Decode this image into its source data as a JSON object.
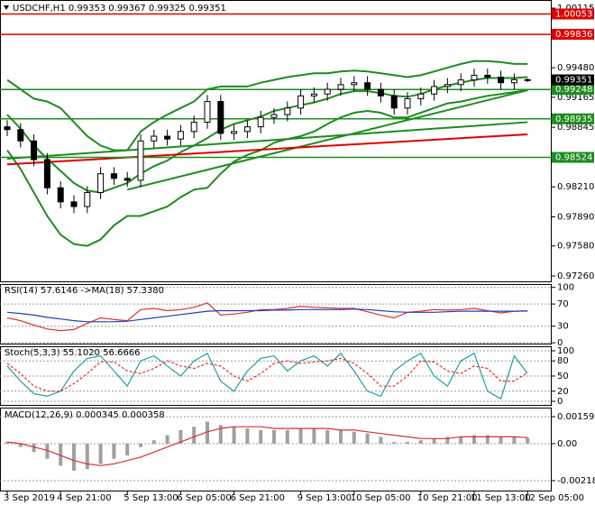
{
  "chart_data": [
    {
      "type": "candlestick",
      "title": "USDCHF,H1  0.99353 0.99367 0.99325 0.99351",
      "categories": [
        "3 Sep 2019",
        null,
        null,
        null,
        "4 Sep 21:00",
        null,
        null,
        null,
        null,
        "5 Sep 13:00",
        null,
        null,
        null,
        "6 Sep 05:00",
        null,
        null,
        null,
        "6 Sep 21:00",
        null,
        null,
        null,
        null,
        "9 Sep 13:00",
        null,
        null,
        null,
        "10 Sep 05:00",
        null,
        null,
        null,
        null,
        "10 Sep 21:00",
        null,
        null,
        null,
        "11 Sep 13:00",
        null,
        null,
        null,
        "12 Sep 05:00"
      ],
      "open": [
        0.9885,
        0.9882,
        0.987,
        0.985,
        0.982,
        0.9805,
        0.98,
        0.9815,
        0.9835,
        0.983,
        0.9828,
        0.987,
        0.9875,
        0.9872,
        0.988,
        0.989,
        0.9912,
        0.9878,
        0.988,
        0.9885,
        0.9895,
        0.9898,
        0.9905,
        0.9918,
        0.992,
        0.9925,
        0.993,
        0.9932,
        0.9925,
        0.9918,
        0.9905,
        0.9915,
        0.992,
        0.9928,
        0.993,
        0.9935,
        0.994,
        0.9938,
        0.9932,
        0.99353
      ],
      "high": [
        0.9892,
        0.9889,
        0.9877,
        0.9857,
        0.9827,
        0.9812,
        0.9822,
        0.9842,
        0.9842,
        0.9837,
        0.9877,
        0.9882,
        0.9882,
        0.9887,
        0.9897,
        0.9919,
        0.9919,
        0.9887,
        0.9892,
        0.9902,
        0.9905,
        0.9912,
        0.9925,
        0.9927,
        0.9932,
        0.9937,
        0.9939,
        0.9939,
        0.9932,
        0.9925,
        0.9922,
        0.9927,
        0.9935,
        0.9937,
        0.9942,
        0.9947,
        0.9947,
        0.9945,
        0.9942,
        0.99367
      ],
      "low": [
        0.9875,
        0.9863,
        0.9843,
        0.9813,
        0.9798,
        0.9793,
        0.9793,
        0.9808,
        0.9823,
        0.9821,
        0.9821,
        0.9863,
        0.9865,
        0.9865,
        0.9873,
        0.9883,
        0.9871,
        0.9871,
        0.9873,
        0.9878,
        0.9888,
        0.9891,
        0.9898,
        0.9911,
        0.9913,
        0.9918,
        0.9923,
        0.9918,
        0.9911,
        0.9898,
        0.9898,
        0.9908,
        0.9913,
        0.9921,
        0.9923,
        0.9928,
        0.9931,
        0.9925,
        0.9925,
        0.99325
      ],
      "close": [
        0.9882,
        0.987,
        0.985,
        0.982,
        0.9805,
        0.98,
        0.9815,
        0.9835,
        0.983,
        0.9828,
        0.987,
        0.9875,
        0.9872,
        0.988,
        0.989,
        0.9912,
        0.9878,
        0.988,
        0.9885,
        0.9895,
        0.9898,
        0.9905,
        0.9918,
        0.992,
        0.9925,
        0.993,
        0.9932,
        0.9925,
        0.9918,
        0.9905,
        0.9915,
        0.992,
        0.9928,
        0.993,
        0.9935,
        0.994,
        0.9938,
        0.9932,
        0.99353,
        0.99351
      ],
      "up_color": "#ffffff",
      "down_color": "#000000",
      "last_price_color": "#000000",
      "series": [
        {
          "color": "#1e8c1e",
          "values": [
            0.9935,
            0.9925,
            0.9915,
            0.9912,
            0.9905,
            0.989,
            0.9875,
            0.9865,
            0.986,
            0.986,
            0.988,
            0.989,
            0.9898,
            0.9905,
            0.9912,
            0.9925,
            0.9928,
            0.9928,
            0.9928,
            0.9932,
            0.9935,
            0.9938,
            0.994,
            0.9942,
            0.9942,
            0.9944,
            0.9945,
            0.9944,
            0.9942,
            0.994,
            0.9938,
            0.994,
            0.9944,
            0.9948,
            0.9952,
            0.9955,
            0.9955,
            0.9954,
            0.9952,
            0.9952
          ]
        },
        {
          "color": "#1e8c1e",
          "values": [
            0.9898,
            0.9883,
            0.9865,
            0.9851,
            0.9838,
            0.9825,
            0.9817,
            0.9815,
            0.982,
            0.9825,
            0.9835,
            0.9843,
            0.9849,
            0.9858,
            0.9865,
            0.9873,
            0.9882,
            0.9888,
            0.9892,
            0.9896,
            0.9902,
            0.9905,
            0.9908,
            0.9911,
            0.9915,
            0.992,
            0.9923,
            0.9923,
            0.9921,
            0.9918,
            0.9917,
            0.992,
            0.9925,
            0.9929,
            0.9932,
            0.9935,
            0.9937,
            0.9937,
            0.9937,
            0.9938
          ]
        },
        {
          "color": "#1e8c1e",
          "values": [
            0.986,
            0.984,
            0.9815,
            0.979,
            0.977,
            0.976,
            0.9758,
            0.9765,
            0.978,
            0.979,
            0.979,
            0.9795,
            0.98,
            0.981,
            0.9818,
            0.982,
            0.9835,
            0.9848,
            0.9855,
            0.986,
            0.9868,
            0.9872,
            0.9875,
            0.988,
            0.9888,
            0.9895,
            0.99,
            0.9902,
            0.99,
            0.9895,
            0.9895,
            0.99,
            0.9905,
            0.991,
            0.9912,
            0.9915,
            0.9918,
            0.992,
            0.9922,
            0.9924
          ]
        }
      ],
      "trendlines": [
        {
          "color": "#1e8c1e",
          "x": [
            9,
            39
          ],
          "y": [
            0.9818,
            0.9924
          ]
        },
        {
          "color": "#1e8c1e",
          "x": [
            0,
            39
          ],
          "y": [
            0.9851,
            0.989
          ]
        },
        {
          "color": "#e00000",
          "x": [
            0,
            39
          ],
          "y": [
            0.9845,
            0.9877
          ]
        }
      ],
      "levels": [
        {
          "value": 1.00053,
          "color": "#e00000"
        },
        {
          "value": 0.99836,
          "color": "#e00000"
        },
        {
          "value": 0.99248,
          "color": "#1e8c1e"
        },
        {
          "value": 0.98935,
          "color": "#1e8c1e"
        },
        {
          "value": 0.98524,
          "color": "#1e8c1e"
        }
      ],
      "ylim": [
        0.97193,
        1.00202
      ],
      "yticks": [
        1.00115,
        {
          "value": 0.9948,
          "label": "0.99480"
        },
        0.99165,
        0.98845,
        {
          "value": 0.9821,
          "label": "0.98210"
        },
        {
          "value": 0.9789,
          "label": "0.97890"
        },
        {
          "value": 0.9758,
          "label": "0.97580"
        },
        {
          "value": 0.9726,
          "label": "0.97260"
        }
      ]
    },
    {
      "type": "line",
      "title": "RSI(14) 57.6146 ->MA(18) 57.3380",
      "series": [
        {
          "color": "#e03030",
          "values": [
            45,
            40,
            32,
            25,
            22,
            24,
            35,
            45,
            42,
            40,
            60,
            62,
            58,
            60,
            64,
            72,
            50,
            52,
            55,
            60,
            60,
            62,
            66,
            64,
            63,
            62,
            62,
            56,
            50,
            45,
            55,
            57,
            60,
            59,
            60,
            62,
            58,
            54,
            57,
            57.6146
          ]
        },
        {
          "color": "#1f3fbf",
          "values": [
            55,
            53,
            50,
            46,
            43,
            40,
            38,
            38,
            38,
            39,
            42,
            45,
            48,
            51,
            54,
            57,
            58,
            58,
            58,
            58,
            59,
            59,
            60,
            60,
            60,
            60,
            61,
            60,
            58,
            56,
            55,
            55,
            55,
            56,
            57,
            57,
            57,
            57,
            57,
            57.338
          ]
        }
      ],
      "ylim": [
        -3,
        106
      ],
      "yticks": [
        100,
        70,
        30,
        0
      ]
    },
    {
      "type": "line",
      "title": "Stoch(5,3,3) 55.1020 56.6666",
      "series": [
        {
          "color": "#20a0a0",
          "values": [
            70,
            40,
            15,
            10,
            20,
            60,
            85,
            90,
            60,
            30,
            80,
            90,
            70,
            50,
            80,
            95,
            40,
            20,
            60,
            85,
            90,
            60,
            80,
            90,
            70,
            95,
            60,
            20,
            10,
            60,
            80,
            95,
            50,
            30,
            80,
            95,
            20,
            5,
            90,
            55.102
          ]
        },
        {
          "color": "#e03030",
          "dashed": true,
          "values": [
            75,
            55,
            30,
            20,
            20,
            35,
            55,
            78,
            78,
            60,
            55,
            65,
            80,
            70,
            65,
            75,
            70,
            50,
            40,
            55,
            75,
            80,
            75,
            78,
            80,
            85,
            75,
            55,
            30,
            30,
            50,
            80,
            78,
            60,
            55,
            70,
            65,
            40,
            40,
            56.6666
          ]
        }
      ],
      "ylim": [
        -9,
        109
      ],
      "yticks": [
        100,
        80,
        50,
        20,
        0
      ]
    },
    {
      "type": "macd",
      "title": "MACD(12,26,9) 0.000345 0.000358",
      "histogram": {
        "color": "#a0a0a0",
        "values": [
          0.0001,
          -0.0002,
          -0.0005,
          -0.0009,
          -0.0013,
          -0.0016,
          -0.0015,
          -0.0012,
          -0.0009,
          -0.0007,
          -0.0002,
          0.0002,
          0.0005,
          0.0008,
          0.001,
          0.0013,
          0.0011,
          0.001,
          0.0009,
          0.0008,
          0.0008,
          0.0008,
          0.0009,
          0.0009,
          0.0008,
          0.0008,
          0.0007,
          0.0006,
          0.0004,
          0.0001,
          0.0001,
          0.0002,
          0.0003,
          0.0004,
          0.0004,
          0.0005,
          0.0005,
          0.0004,
          0.0004,
          0.000345
        ]
      },
      "signal": {
        "color": "#e03030",
        "values": [
          0.0001,
          0.0,
          -0.0002,
          -0.0004,
          -0.0007,
          -0.001,
          -0.0012,
          -0.0013,
          -0.0012,
          -0.001,
          -0.0008,
          -0.0005,
          -0.0002,
          0.0001,
          0.0004,
          0.0007,
          0.0009,
          0.001,
          0.001,
          0.001,
          0.0009,
          0.0009,
          0.0009,
          0.0009,
          0.0009,
          0.0008,
          0.0008,
          0.0007,
          0.0006,
          0.0005,
          0.0004,
          0.0003,
          0.0003,
          0.0003,
          0.0004,
          0.0004,
          0.0004,
          0.0004,
          0.0004,
          0.000358
        ]
      },
      "ylim": [
        -0.00283,
        0.00213
      ],
      "yticks": [
        0.001593,
        {
          "value": 0,
          "label": "0.00"
        },
        -0.002187
      ]
    }
  ]
}
